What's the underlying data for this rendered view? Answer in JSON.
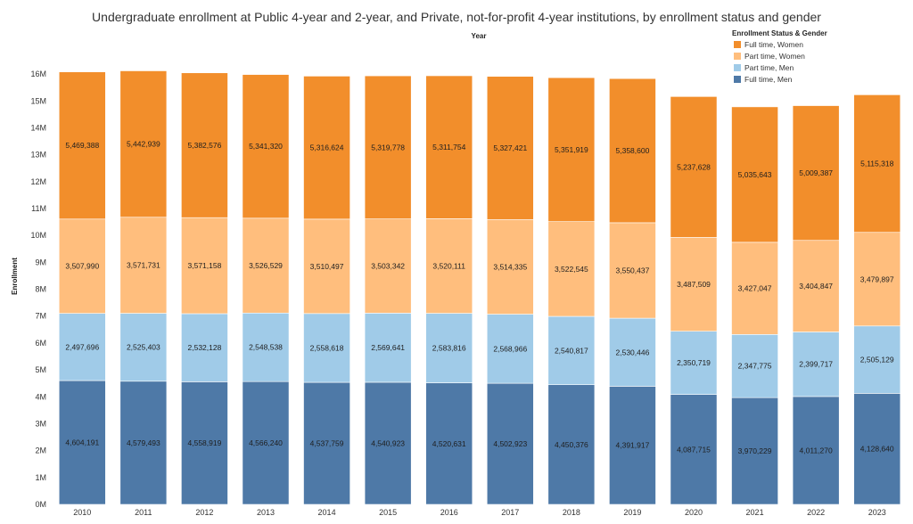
{
  "chart_data": {
    "type": "bar",
    "stacked": true,
    "title": "Undergraduate enrollment at Public 4-year and 2-year, and Private, not-for-profit 4-year institutions, by enrollment status and gender",
    "xlabel": "Year",
    "ylabel": "Enrollment",
    "ylim": [
      0,
      16500000
    ],
    "yticks": [
      {
        "value": 0,
        "label": "0M"
      },
      {
        "value": 1000000,
        "label": "1M"
      },
      {
        "value": 2000000,
        "label": "2M"
      },
      {
        "value": 3000000,
        "label": "3M"
      },
      {
        "value": 4000000,
        "label": "4M"
      },
      {
        "value": 5000000,
        "label": "5M"
      },
      {
        "value": 6000000,
        "label": "6M"
      },
      {
        "value": 7000000,
        "label": "7M"
      },
      {
        "value": 8000000,
        "label": "8M"
      },
      {
        "value": 9000000,
        "label": "9M"
      },
      {
        "value": 10000000,
        "label": "10M"
      },
      {
        "value": 11000000,
        "label": "11M"
      },
      {
        "value": 12000000,
        "label": "12M"
      },
      {
        "value": 13000000,
        "label": "13M"
      },
      {
        "value": 14000000,
        "label": "14M"
      },
      {
        "value": 15000000,
        "label": "15M"
      },
      {
        "value": 16000000,
        "label": "16M"
      }
    ],
    "categories": [
      "2010",
      "2011",
      "2012",
      "2013",
      "2014",
      "2015",
      "2016",
      "2017",
      "2018",
      "2019",
      "2020",
      "2021",
      "2022",
      "2023"
    ],
    "legend_title": "Enrollment Status & Gender",
    "legend_position": "top-right",
    "series": [
      {
        "name": "Full time, Men",
        "color": "#4e79a7",
        "values": [
          4604191,
          4579493,
          4558919,
          4566240,
          4537759,
          4540923,
          4520631,
          4502923,
          4450376,
          4391917,
          4087715,
          3970229,
          4011270,
          4128640
        ],
        "labels": [
          "4,604,191",
          "4,579,493",
          "4,558,919",
          "4,566,240",
          "4,537,759",
          "4,540,923",
          "4,520,631",
          "4,502,923",
          "4,450,376",
          "4,391,917",
          "4,087,715",
          "3,970,229",
          "4,011,270",
          "4,128,640"
        ]
      },
      {
        "name": "Part time, Men",
        "color": "#a0cbe8",
        "values": [
          2497696,
          2525403,
          2532128,
          2548538,
          2558618,
          2569641,
          2583816,
          2568966,
          2540817,
          2530446,
          2350719,
          2347775,
          2399717,
          2505129
        ],
        "labels": [
          "2,497,696",
          "2,525,403",
          "2,532,128",
          "2,548,538",
          "2,558,618",
          "2,569,641",
          "2,583,816",
          "2,568,966",
          "2,540,817",
          "2,530,446",
          "2,350,719",
          "2,347,775",
          "2,399,717",
          "2,505,129"
        ]
      },
      {
        "name": "Part time, Women",
        "color": "#ffbe7d",
        "values": [
          3507990,
          3571731,
          3571158,
          3526529,
          3510497,
          3503342,
          3520111,
          3514335,
          3522545,
          3550437,
          3487509,
          3427047,
          3404847,
          3479897
        ],
        "labels": [
          "3,507,990",
          "3,571,731",
          "3,571,158",
          "3,526,529",
          "3,510,497",
          "3,503,342",
          "3,520,111",
          "3,514,335",
          "3,522,545",
          "3,550,437",
          "3,487,509",
          "3,427,047",
          "3,404,847",
          "3,479,897"
        ]
      },
      {
        "name": "Full time, Women",
        "color": "#f28e2b",
        "values": [
          5469388,
          5442939,
          5382576,
          5341320,
          5316624,
          5319778,
          5311754,
          5327421,
          5351919,
          5358600,
          5237628,
          5035643,
          5009387,
          5115318
        ],
        "labels": [
          "5,469,388",
          "5,442,939",
          "5,382,576",
          "5,341,320",
          "5,316,624",
          "5,319,778",
          "5,311,754",
          "5,327,421",
          "5,351,919",
          "5,358,600",
          "5,237,628",
          "5,035,643",
          "5,009,387",
          "5,115,318"
        ]
      }
    ],
    "legend_order": [
      3,
      2,
      1,
      0
    ]
  }
}
